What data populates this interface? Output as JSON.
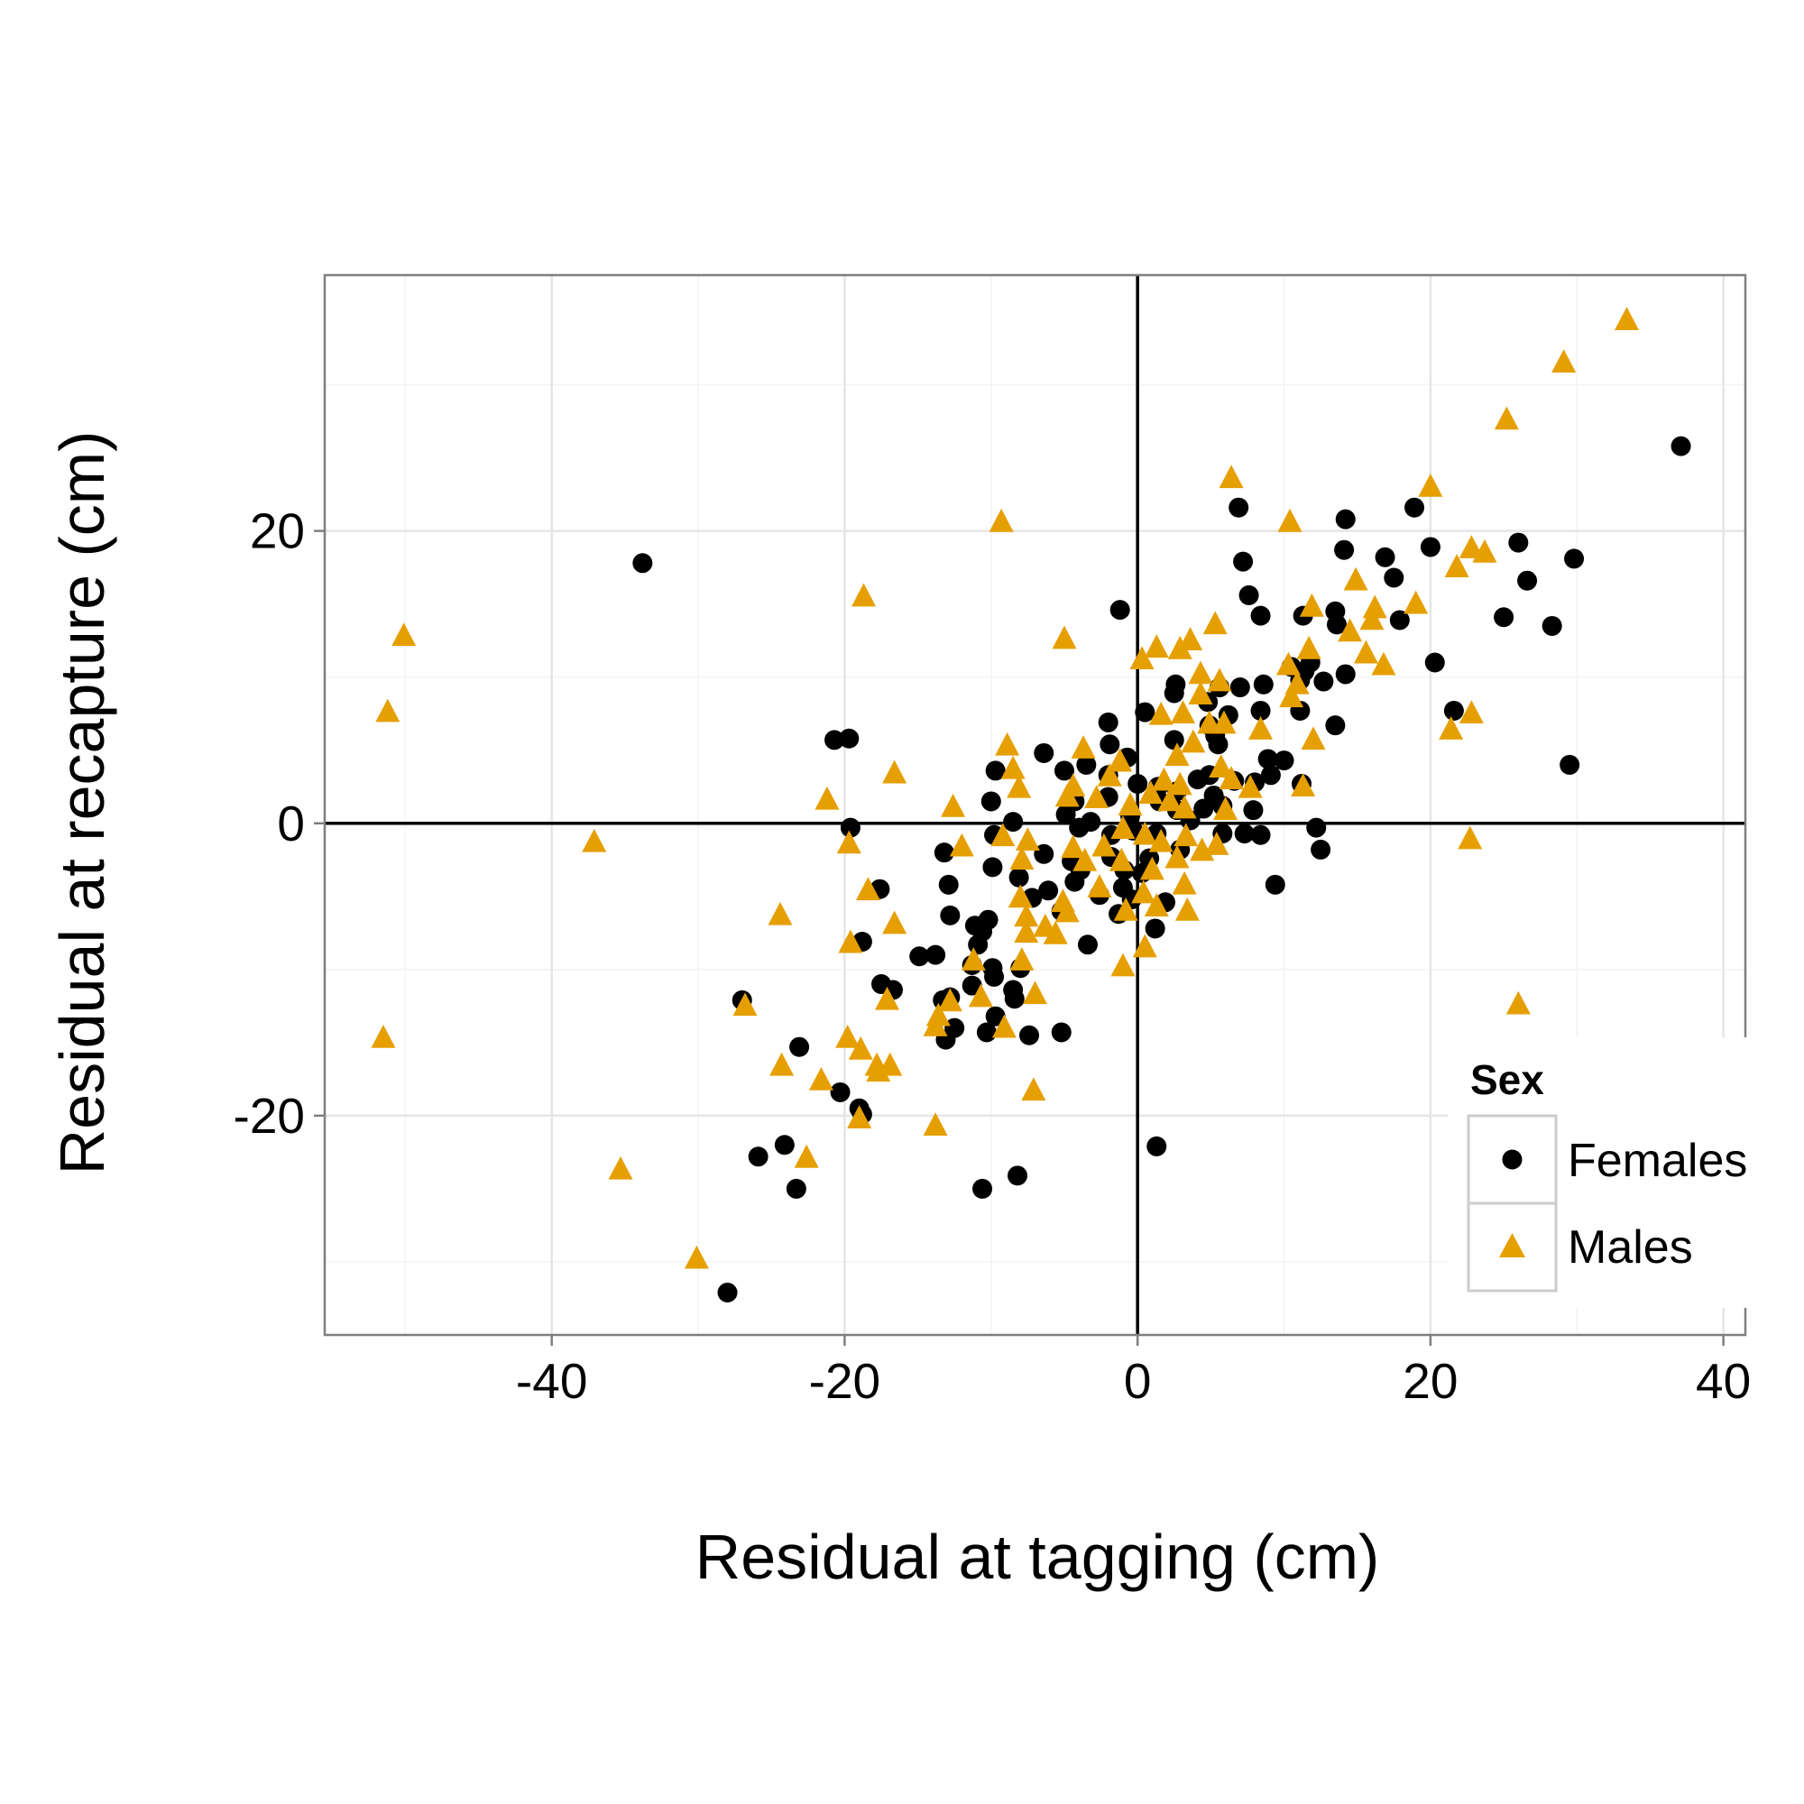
{
  "chart_data": {
    "type": "scatter",
    "title": "",
    "xlabel": "Residual at tagging (cm)",
    "ylabel": "Residual at recapture (cm)",
    "xlim": [
      -55.5,
      41.5
    ],
    "ylim": [
      -35,
      37.5
    ],
    "x_ticks": [
      -40,
      -20,
      0,
      20,
      40
    ],
    "y_ticks": [
      -20,
      0,
      20
    ],
    "x_tick_labels": [
      "-40",
      "-20",
      "0",
      "20",
      "40"
    ],
    "y_tick_labels": [
      "-20",
      "0",
      "20"
    ],
    "grid": true,
    "reference_lines": {
      "x": 0,
      "y": 0
    },
    "legend": {
      "title": "Sex",
      "position": "bottom-right",
      "entries": [
        "Females",
        "Males"
      ]
    },
    "series": [
      {
        "name": "Females",
        "marker": "circle",
        "color": "#000000",
        "points": [
          [
            -33.8,
            17.8
          ],
          [
            37.1,
            25.8
          ],
          [
            29.8,
            18.1
          ],
          [
            26.6,
            16.6
          ],
          [
            28.3,
            13.5
          ],
          [
            26.0,
            19.2
          ],
          [
            25.0,
            14.1
          ],
          [
            29.5,
            4.0
          ],
          [
            18.9,
            21.6
          ],
          [
            20.0,
            18.9
          ],
          [
            14.2,
            20.8
          ],
          [
            16.9,
            18.2
          ],
          [
            17.5,
            16.8
          ],
          [
            17.9,
            13.9
          ],
          [
            14.1,
            18.7
          ],
          [
            13.5,
            14.5
          ],
          [
            20.3,
            11.0
          ],
          [
            21.6,
            7.7
          ],
          [
            6.9,
            21.6
          ],
          [
            7.2,
            17.9
          ],
          [
            7.6,
            15.6
          ],
          [
            8.4,
            14.2
          ],
          [
            11.3,
            14.2
          ],
          [
            13.6,
            13.6
          ],
          [
            11.8,
            11.0
          ],
          [
            12.7,
            9.7
          ],
          [
            14.2,
            10.2
          ],
          [
            10.5,
            10.7
          ],
          [
            11.1,
            9.8
          ],
          [
            11.4,
            10.4
          ],
          [
            8.6,
            9.5
          ],
          [
            7.0,
            9.3
          ],
          [
            5.6,
            9.3
          ],
          [
            4.8,
            8.3
          ],
          [
            2.6,
            9.5
          ],
          [
            2.5,
            8.9
          ],
          [
            6.2,
            7.4
          ],
          [
            8.4,
            7.7
          ],
          [
            11.1,
            7.7
          ],
          [
            13.5,
            6.7
          ],
          [
            -1.2,
            14.6
          ],
          [
            0.5,
            7.6
          ],
          [
            -2.0,
            6.9
          ],
          [
            -1.9,
            5.4
          ],
          [
            2.5,
            5.7
          ],
          [
            4.9,
            6.7
          ],
          [
            5.3,
            6.0
          ],
          [
            5.5,
            5.4
          ],
          [
            -6.4,
            4.8
          ],
          [
            -5.0,
            3.6
          ],
          [
            -3.5,
            4.0
          ],
          [
            -0.7,
            4.5
          ],
          [
            -9.7,
            3.6
          ],
          [
            -10.0,
            1.5
          ],
          [
            -2.0,
            3.3
          ],
          [
            0.0,
            2.7
          ],
          [
            1.4,
            2.5
          ],
          [
            2.7,
            2.2
          ],
          [
            4.1,
            3.0
          ],
          [
            4.9,
            3.3
          ],
          [
            6.6,
            2.9
          ],
          [
            8.0,
            2.8
          ],
          [
            9.1,
            3.3
          ],
          [
            10.0,
            4.3
          ],
          [
            11.2,
            2.7
          ],
          [
            8.9,
            4.4
          ],
          [
            -20.7,
            5.7
          ],
          [
            -19.7,
            5.8
          ],
          [
            -19.6,
            -0.3
          ],
          [
            -8.5,
            0.1
          ],
          [
            -4.9,
            0.6
          ],
          [
            -4.3,
            1.5
          ],
          [
            -3.2,
            0.1
          ],
          [
            -2.0,
            1.8
          ],
          [
            -0.5,
            0.5
          ],
          [
            1.5,
            1.5
          ],
          [
            2.7,
            0.9
          ],
          [
            3.6,
            0.2
          ],
          [
            4.5,
            1.0
          ],
          [
            5.2,
            1.9
          ],
          [
            5.8,
            1.2
          ],
          [
            7.9,
            0.9
          ],
          [
            12.2,
            -0.3
          ],
          [
            -4.0,
            -0.3
          ],
          [
            -1.8,
            -0.8
          ],
          [
            -0.3,
            -0.5
          ],
          [
            1.3,
            -0.7
          ],
          [
            5.8,
            -0.7
          ],
          [
            7.3,
            -0.7
          ],
          [
            8.4,
            -0.8
          ],
          [
            -9.8,
            -0.8
          ],
          [
            -13.2,
            -2.0
          ],
          [
            -9.9,
            -3.0
          ],
          [
            -8.1,
            -3.7
          ],
          [
            -6.4,
            -2.1
          ],
          [
            -4.5,
            -2.6
          ],
          [
            -3.9,
            -3.2
          ],
          [
            -1.8,
            -2.3
          ],
          [
            -0.9,
            -3.2
          ],
          [
            0.3,
            -3.4
          ],
          [
            0.8,
            -2.4
          ],
          [
            2.9,
            -1.8
          ],
          [
            12.5,
            -1.8
          ],
          [
            -6.1,
            -4.6
          ],
          [
            -4.3,
            -4.0
          ],
          [
            -2.6,
            -4.9
          ],
          [
            -1.0,
            -4.4
          ],
          [
            -0.4,
            -5.2
          ],
          [
            1.9,
            -5.4
          ],
          [
            -7.2,
            -5.1
          ],
          [
            9.4,
            -4.2
          ],
          [
            -12.9,
            -4.2
          ],
          [
            -5.2,
            -6.0
          ],
          [
            -1.3,
            -6.2
          ],
          [
            -12.8,
            -6.3
          ],
          [
            -10.2,
            -6.6
          ],
          [
            -11.1,
            -7.0
          ],
          [
            -10.6,
            -7.4
          ],
          [
            1.2,
            -7.2
          ],
          [
            -18.8,
            -8.1
          ],
          [
            -17.6,
            -4.5
          ],
          [
            -3.4,
            -8.3
          ],
          [
            -14.9,
            -9.1
          ],
          [
            -13.8,
            -9.0
          ],
          [
            -11.3,
            -9.7
          ],
          [
            -10.9,
            -8.3
          ],
          [
            -9.9,
            -9.9
          ],
          [
            -9.8,
            -10.5
          ],
          [
            -8.0,
            -9.9
          ],
          [
            -17.5,
            -11.0
          ],
          [
            -16.7,
            -11.4
          ],
          [
            -12.8,
            -11.9
          ],
          [
            -13.3,
            -12.1
          ],
          [
            -11.3,
            -11.1
          ],
          [
            -8.5,
            -11.4
          ],
          [
            -8.4,
            -12.0
          ],
          [
            -27.0,
            -12.1
          ],
          [
            -12.5,
            -14.0
          ],
          [
            -13.1,
            -14.8
          ],
          [
            -10.3,
            -14.3
          ],
          [
            -9.7,
            -13.2
          ],
          [
            -7.4,
            -14.5
          ],
          [
            -5.2,
            -14.3
          ],
          [
            -23.1,
            -15.3
          ],
          [
            -20.3,
            -18.4
          ],
          [
            -19.0,
            -19.5
          ],
          [
            -18.8,
            -19.9
          ],
          [
            -24.1,
            -22.0
          ],
          [
            -25.9,
            -22.8
          ],
          [
            -23.3,
            -25.0
          ],
          [
            -10.6,
            -25.0
          ],
          [
            -8.2,
            -24.1
          ],
          [
            1.3,
            -22.1
          ],
          [
            -28.0,
            -32.1
          ]
        ]
      },
      {
        "name": "Males",
        "marker": "triangle",
        "color": "#E69F00",
        "points": [
          [
            33.4,
            34.4
          ],
          [
            29.1,
            31.5
          ],
          [
            25.2,
            27.6
          ],
          [
            20.0,
            23.0
          ],
          [
            6.4,
            23.6
          ],
          [
            10.4,
            20.6
          ],
          [
            -9.3,
            20.6
          ],
          [
            22.8,
            18.8
          ],
          [
            23.7,
            18.5
          ],
          [
            21.8,
            17.5
          ],
          [
            14.9,
            16.6
          ],
          [
            -18.7,
            15.5
          ],
          [
            19.0,
            15.0
          ],
          [
            16.2,
            14.7
          ],
          [
            11.9,
            14.8
          ],
          [
            16.0,
            13.9
          ],
          [
            -50.1,
            12.8
          ],
          [
            -5.0,
            12.6
          ],
          [
            3.6,
            12.5
          ],
          [
            2.9,
            11.9
          ],
          [
            1.3,
            12.0
          ],
          [
            0.3,
            11.2
          ],
          [
            5.3,
            13.6
          ],
          [
            11.7,
            11.9
          ],
          [
            14.5,
            13.1
          ],
          [
            15.6,
            11.6
          ],
          [
            16.8,
            10.8
          ],
          [
            10.3,
            10.8
          ],
          [
            10.9,
            9.5
          ],
          [
            10.5,
            8.6
          ],
          [
            5.6,
            9.7
          ],
          [
            4.3,
            8.8
          ],
          [
            4.3,
            10.2
          ],
          [
            3.1,
            7.5
          ],
          [
            5.9,
            6.8
          ],
          [
            -51.2,
            7.6
          ],
          [
            1.6,
            7.4
          ],
          [
            4.9,
            6.8
          ],
          [
            8.4,
            6.4
          ],
          [
            12.0,
            5.7
          ],
          [
            21.4,
            6.4
          ],
          [
            22.8,
            7.5
          ],
          [
            -8.9,
            5.3
          ],
          [
            -3.7,
            5.1
          ],
          [
            -1.2,
            4.2
          ],
          [
            2.7,
            4.6
          ],
          [
            3.8,
            5.5
          ],
          [
            5.7,
            3.8
          ],
          [
            -16.6,
            3.4
          ],
          [
            -8.5,
            3.7
          ],
          [
            -4.4,
            2.5
          ],
          [
            -1.9,
            3.2
          ],
          [
            1.8,
            2.9
          ],
          [
            2.9,
            2.6
          ],
          [
            6.4,
            3.0
          ],
          [
            7.7,
            2.4
          ],
          [
            11.3,
            2.5
          ],
          [
            -21.2,
            1.6
          ],
          [
            -12.6,
            1.1
          ],
          [
            -8.1,
            2.4
          ],
          [
            -4.8,
            1.8
          ],
          [
            -2.8,
            1.7
          ],
          [
            -0.5,
            1.2
          ],
          [
            0.9,
            2.0
          ],
          [
            2.2,
            1.5
          ],
          [
            3.2,
            1.0
          ],
          [
            6.0,
            0.9
          ],
          [
            -9.2,
            -0.9
          ],
          [
            -7.5,
            -1.2
          ],
          [
            -4.4,
            -1.7
          ],
          [
            -2.3,
            -1.6
          ],
          [
            -1.0,
            -0.4
          ],
          [
            0.5,
            -0.8
          ],
          [
            1.6,
            -1.3
          ],
          [
            3.3,
            -0.9
          ],
          [
            5.4,
            -1.5
          ],
          [
            22.7,
            -1.1
          ],
          [
            -37.1,
            -1.3
          ],
          [
            -19.7,
            -1.4
          ],
          [
            -12.0,
            -1.6
          ],
          [
            -7.9,
            -2.5
          ],
          [
            -3.6,
            -2.6
          ],
          [
            -1.1,
            -2.6
          ],
          [
            1.0,
            -3.2
          ],
          [
            2.7,
            -2.4
          ],
          [
            4.4,
            -1.9
          ],
          [
            -18.4,
            -4.6
          ],
          [
            -8.0,
            -5.1
          ],
          [
            -5.1,
            -5.4
          ],
          [
            -2.6,
            -4.4
          ],
          [
            0.4,
            -4.8
          ],
          [
            3.2,
            -4.2
          ],
          [
            -24.4,
            -6.3
          ],
          [
            -16.6,
            -6.9
          ],
          [
            -7.6,
            -6.4
          ],
          [
            -6.3,
            -7.1
          ],
          [
            -4.8,
            -6.1
          ],
          [
            -0.8,
            -6.0
          ],
          [
            1.3,
            -5.7
          ],
          [
            3.4,
            -6.0
          ],
          [
            -19.6,
            -8.2
          ],
          [
            -7.6,
            -7.5
          ],
          [
            -5.6,
            -7.6
          ],
          [
            0.5,
            -8.5
          ],
          [
            -11.2,
            -9.4
          ],
          [
            -7.9,
            -9.4
          ],
          [
            -1.0,
            -9.8
          ],
          [
            -17.1,
            -12.1
          ],
          [
            -12.8,
            -12.2
          ],
          [
            -10.7,
            -11.9
          ],
          [
            -7.0,
            -11.7
          ],
          [
            -26.8,
            -12.5
          ],
          [
            -13.6,
            -13.2
          ],
          [
            -9.1,
            -14.0
          ],
          [
            -13.8,
            -13.9
          ],
          [
            26.0,
            -12.4
          ],
          [
            -51.5,
            -14.7
          ],
          [
            -19.8,
            -14.7
          ],
          [
            -18.9,
            -15.5
          ],
          [
            -24.3,
            -16.6
          ],
          [
            -17.8,
            -16.6
          ],
          [
            -16.9,
            -16.6
          ],
          [
            -17.7,
            -17.0
          ],
          [
            -21.6,
            -17.6
          ],
          [
            -7.1,
            -18.3
          ],
          [
            -19.0,
            -20.2
          ],
          [
            -13.8,
            -20.7
          ],
          [
            -22.6,
            -22.9
          ],
          [
            -35.3,
            -23.7
          ],
          [
            -30.1,
            -29.8
          ]
        ]
      }
    ]
  }
}
